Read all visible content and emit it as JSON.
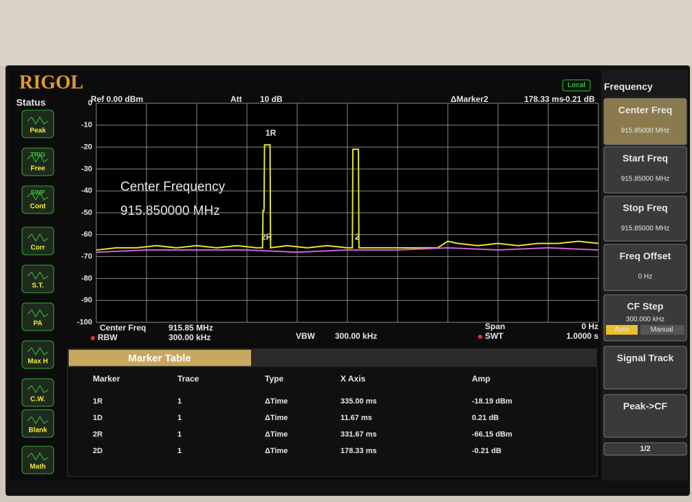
{
  "header": {
    "brand": "RIGOL",
    "mode": "Local"
  },
  "status": {
    "title": "Status",
    "items": [
      {
        "label": "Peak"
      },
      {
        "top": "TRIG",
        "label": "Free"
      },
      {
        "top": "SWP",
        "label": "Cont"
      },
      {
        "label": "Corr"
      },
      {
        "label": "S.T."
      },
      {
        "label": "PA"
      },
      {
        "label": "Max H"
      },
      {
        "label": "C.W."
      },
      {
        "label": "Blank"
      },
      {
        "label": "Math"
      }
    ]
  },
  "plot_header": {
    "ref": "Ref  0.00 dBm",
    "att_label": "Att",
    "att": "10 dB",
    "marker_label": "ΔMarker2",
    "marker_x": "178.33 ms",
    "marker_y": "-0.21 dB"
  },
  "chart_data": {
    "type": "line",
    "ylim": [
      -100,
      0
    ],
    "yticks": [
      0,
      -10,
      -20,
      -30,
      -40,
      -50,
      -60,
      -70,
      -80,
      -90,
      -100
    ],
    "xlim": [
      0,
      1000
    ],
    "annotations": [
      "Center Frequency",
      "915.850000 MHz"
    ],
    "marker_labels": [
      "1R",
      "2R",
      "2"
    ],
    "series": [
      {
        "color": "#e6e632",
        "x": [
          0,
          40,
          80,
          120,
          160,
          200,
          240,
          280,
          320,
          331,
          332,
          334,
          335,
          346,
          347,
          380,
          420,
          460,
          500,
          510,
          511,
          522,
          523,
          560,
          600,
          640,
          680,
          700,
          720,
          760,
          800,
          840,
          880,
          920,
          960,
          1000
        ],
        "values": [
          -67,
          -66,
          -66,
          -65,
          -66,
          -65,
          -66,
          -65,
          -66,
          -66,
          -49,
          -49,
          -19,
          -19,
          -66,
          -65,
          -66,
          -65,
          -66,
          -66,
          -21,
          -21,
          -66,
          -66,
          -66,
          -66,
          -66,
          -63,
          -64,
          -65,
          -64,
          -65,
          -64,
          -64,
          -63,
          -64
        ]
      },
      {
        "color": "#d860d8",
        "x": [
          0,
          100,
          200,
          300,
          400,
          500,
          600,
          700,
          800,
          900,
          1000
        ],
        "values": [
          -68,
          -67,
          -67,
          -67,
          -68,
          -67,
          -67,
          -66,
          -67,
          -66,
          -67
        ]
      }
    ]
  },
  "plot_info": {
    "center_label": "Center Freq",
    "center": "915.85 MHz",
    "rbw_label": "RBW",
    "rbw": "300.00 kHz",
    "vbw_label": "VBW",
    "vbw": "300.00 kHz",
    "span_label": "Span",
    "span": "0 Hz",
    "swt_label": "SWT",
    "swt": "1.0000 s"
  },
  "marker_table": {
    "title": "Marker Table",
    "columns": [
      "Marker",
      "Trace",
      "Type",
      "X Axis",
      "Amp"
    ],
    "rows": [
      [
        "1R",
        "1",
        "ΔTime",
        "335.00 ms",
        "-18.19 dBm"
      ],
      [
        "1D",
        "1",
        "ΔTime",
        "11.67 ms",
        "0.21 dB"
      ],
      [
        "2R",
        "1",
        "ΔTime",
        "331.67 ms",
        "-66.15 dBm"
      ],
      [
        "2D",
        "1",
        "ΔTime",
        "178.33 ms",
        "-0.21 dB"
      ]
    ]
  },
  "menu": {
    "title": "Frequency",
    "buttons": [
      {
        "label": "Center Freq",
        "value": "915.85000 MHz"
      },
      {
        "label": "Start Freq",
        "value": "915.85000 MHz"
      },
      {
        "label": "Stop Freq",
        "value": "915.85000 MHz"
      },
      {
        "label": "Freq Offset",
        "value": "0 Hz"
      },
      {
        "label": "CF Step",
        "value": "300.000 kHz",
        "options": [
          "Auto",
          "Manual"
        ]
      },
      {
        "label": "Signal Track"
      },
      {
        "label": "Peak->CF"
      }
    ],
    "page": "1/2"
  }
}
